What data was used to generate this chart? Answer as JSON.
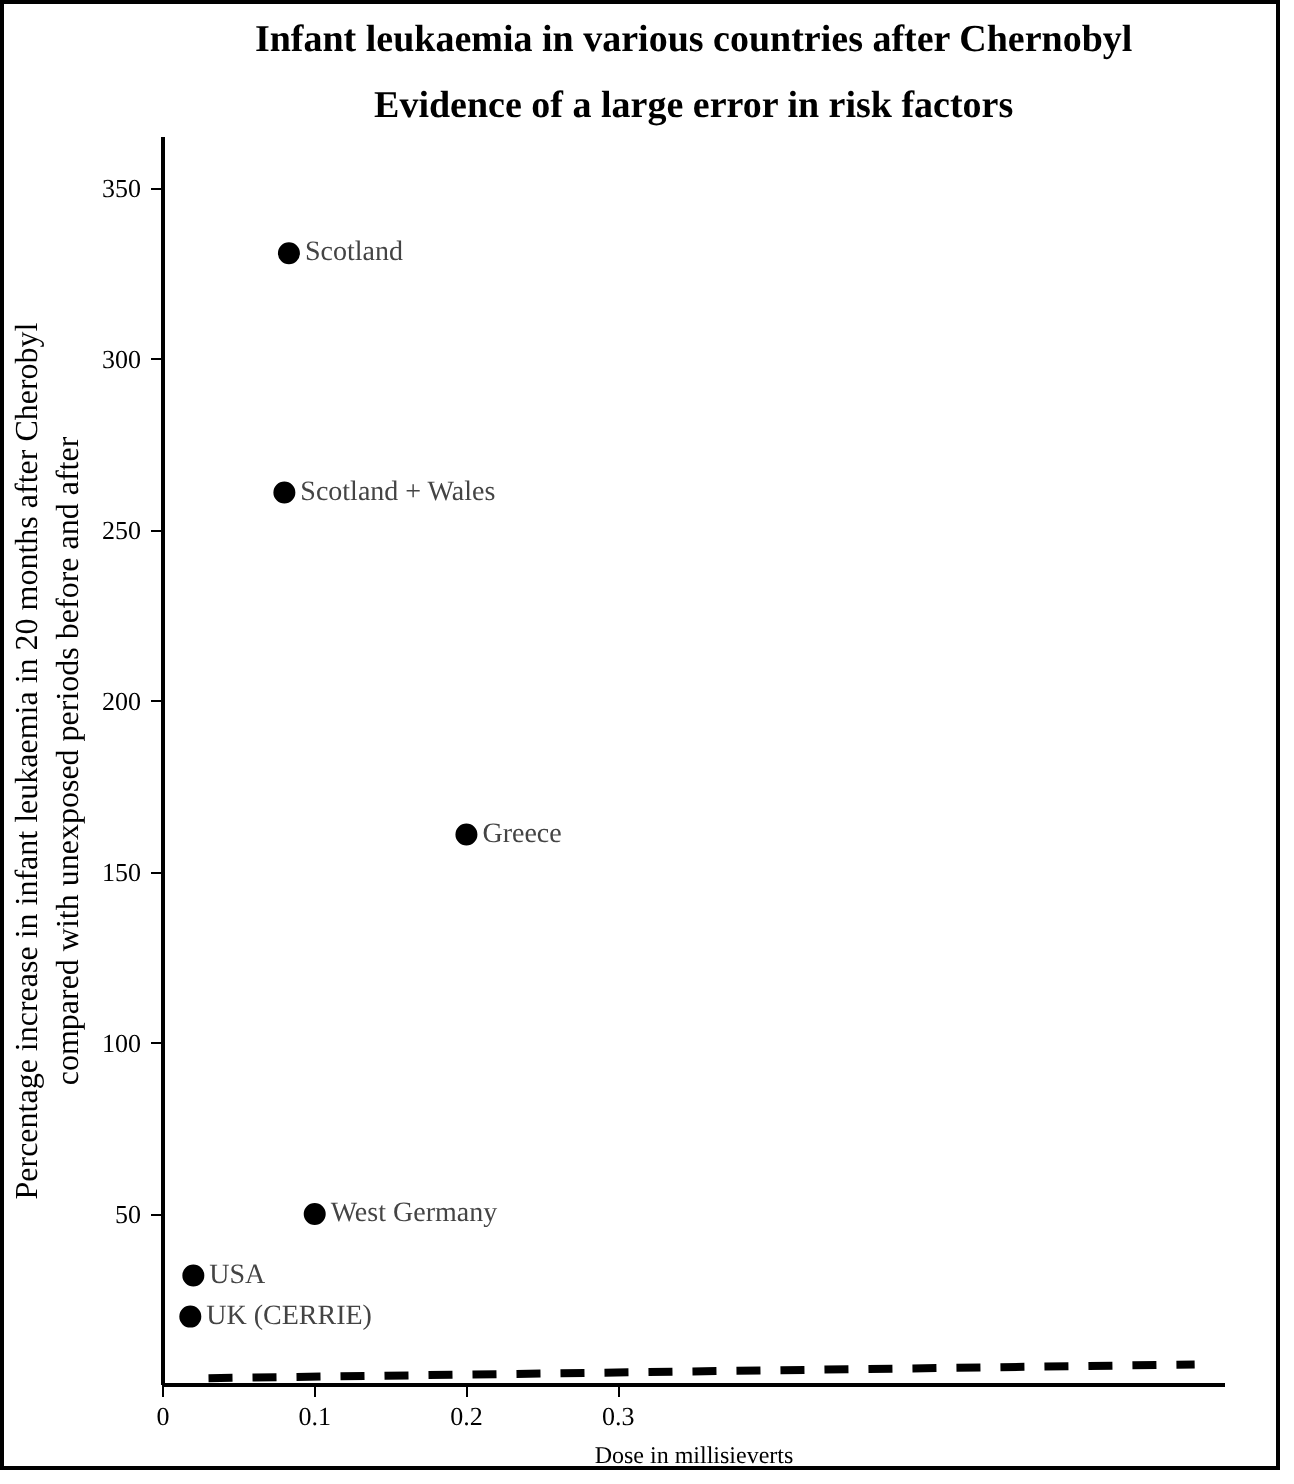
{
  "chart_data": {
    "type": "scatter",
    "title": "Infant leukaemia in various countries after Chernobyl",
    "subtitle": "Evidence of a large error in risk factors",
    "xlabel": "Dose in millisieverts",
    "ylabel": "Percentage increase in infant leukaemia in 20 months after Cherobyl\ncompared with unexposed periods before and after",
    "series": [
      {
        "color": "#000000",
        "x": [
          0.083,
          0.08,
          0.2,
          0.1,
          0.02,
          0.018
        ],
        "values": [
          331,
          261,
          161,
          50,
          32,
          20
        ]
      },
      {
        "type": "line",
        "color": "#000000",
        "line_style": "dashed",
        "marker": "none",
        "x": [
          0.03,
          0.68
        ],
        "values": [
          2,
          6
        ]
      }
    ],
    "annotations": [
      {
        "text": "Scotland",
        "x": 0.083,
        "y": 331
      },
      {
        "text": "Scotland + Wales",
        "x": 0.08,
        "y": 261
      },
      {
        "text": "Greece",
        "x": 0.2,
        "y": 161
      },
      {
        "text": "West Germany",
        "x": 0.1,
        "y": 50
      },
      {
        "text": "USA",
        "x": 0.02,
        "y": 32
      },
      {
        "text": "UK (CERRIE)",
        "x": 0.018,
        "y": 20
      }
    ],
    "marker": "circle",
    "grid": false,
    "xlim": [
      0,
      0.7
    ],
    "ylim": [
      0,
      365
    ],
    "xticks": [
      0,
      0.1,
      0.2,
      0.3
    ],
    "yticks": [
      50,
      100,
      150,
      200,
      250,
      300,
      350
    ]
  }
}
